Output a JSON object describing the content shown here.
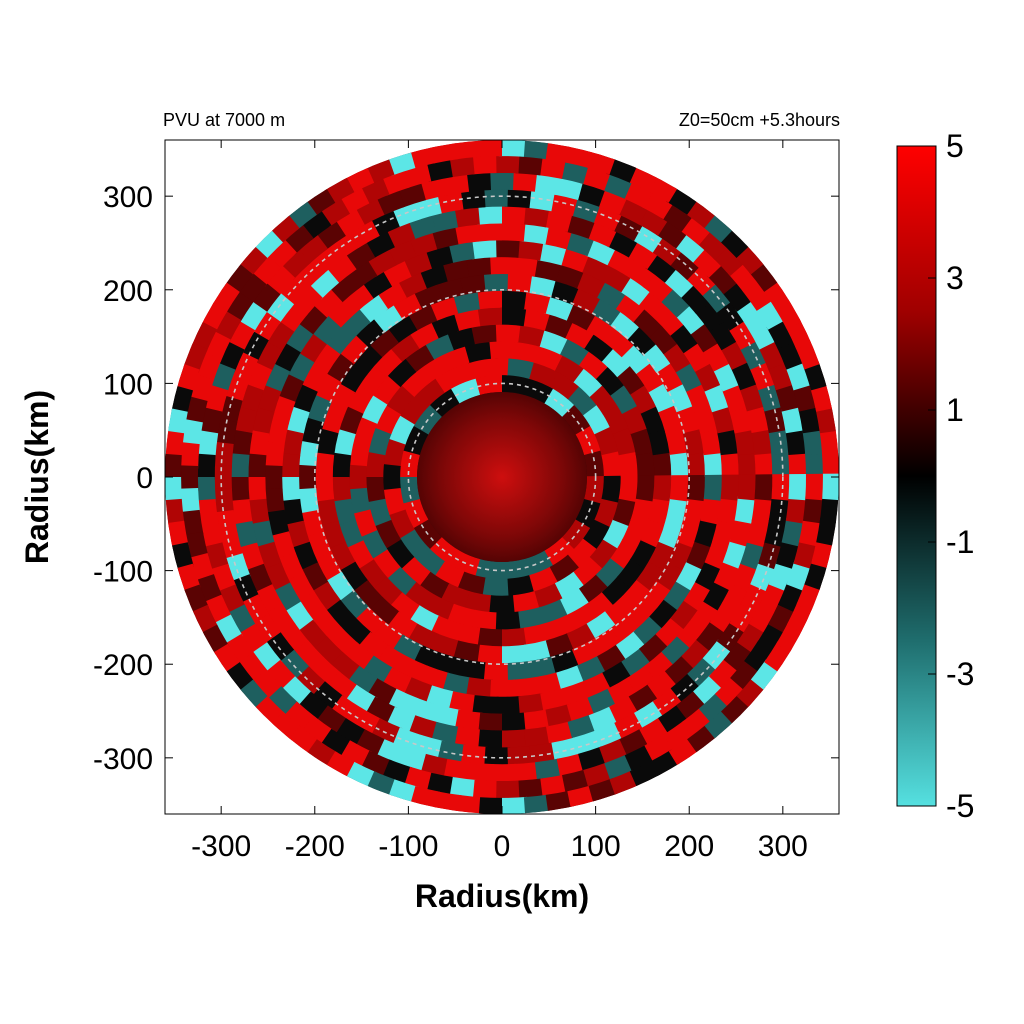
{
  "chart_data": {
    "type": "heatmap",
    "title_left": "PVU at  7000 m",
    "title_right": "Z0=50cm  +5.3hours",
    "xlabel": "Radius(km)",
    "ylabel": "Radius(km)",
    "xlim": [
      -360,
      360
    ],
    "ylim": [
      -360,
      360
    ],
    "x_ticks": [
      "-300",
      "-200",
      "-100",
      "0",
      "100",
      "200",
      "300"
    ],
    "y_ticks": [
      "300",
      "200",
      "100",
      "0",
      "-100",
      "-200",
      "-300"
    ],
    "domain_radius_km": 360,
    "reference_circles_km": [
      100,
      200,
      300
    ],
    "colorbar": {
      "range": [
        -5,
        5
      ],
      "ticks": [
        "5",
        "3",
        "1",
        "-1",
        "-3",
        "-5"
      ],
      "colors": [
        "#ff0000",
        "#000000",
        "#55e0e0"
      ]
    }
  }
}
